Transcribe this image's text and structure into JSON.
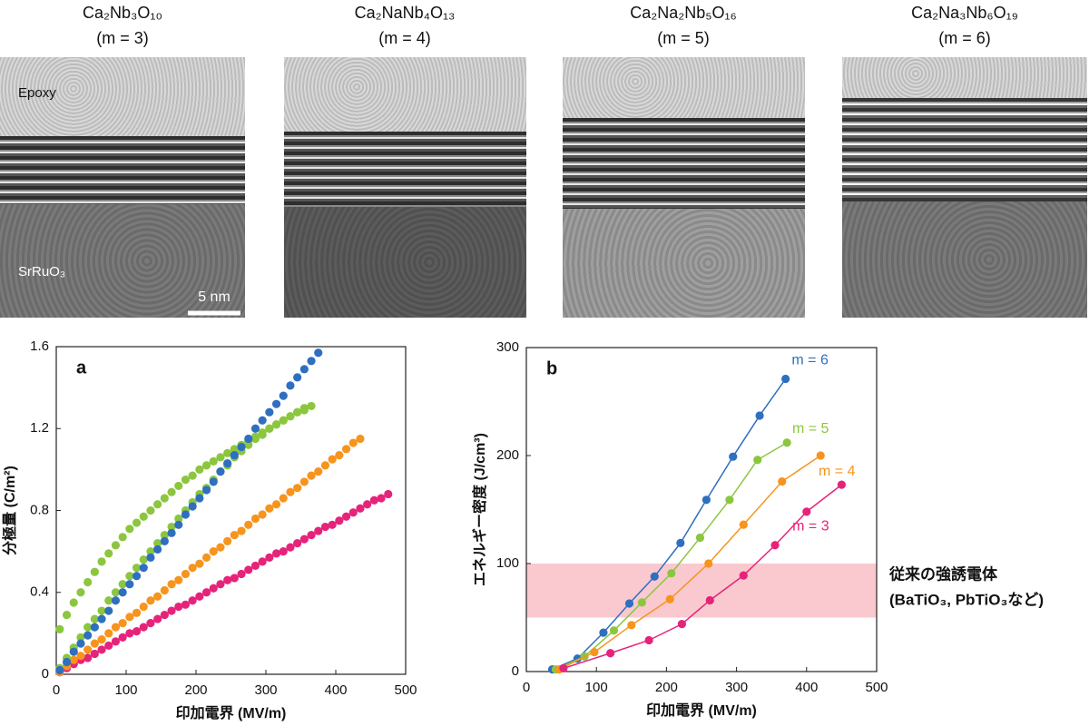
{
  "panels": [
    {
      "formula": "Ca₂Nb₃O₁₀",
      "m": "(m = 3)"
    },
    {
      "formula": "Ca₂NaNb₄O₁₃",
      "m": "(m = 4)"
    },
    {
      "formula": "Ca₂Na₂Nb₅O₁₆",
      "m": "(m = 5)"
    },
    {
      "formula": "Ca₂Na₃Nb₆O₁₉",
      "m": "(m = 6)"
    }
  ],
  "image_labels": {
    "epoxy": "Epoxy",
    "substrate": "SrRuO₃",
    "scale_bar": "5 nm"
  },
  "chart_data": [
    {
      "type": "scatter",
      "panel_label": "a",
      "x_label": "印加電界 (MV/m)",
      "y_label": "分極量 (C/m²)",
      "xlim": [
        0,
        500
      ],
      "xticks": [
        0,
        100,
        200,
        300,
        400,
        500
      ],
      "ylim": [
        0,
        1.6
      ],
      "yticks": [
        0,
        0.4,
        0.8,
        1.2,
        1.6
      ],
      "series": [
        {
          "color": "#e6237a",
          "x": [
            5,
            15,
            25,
            35,
            45,
            55,
            65,
            75,
            85,
            95,
            105,
            115,
            125,
            135,
            145,
            155,
            165,
            175,
            185,
            195,
            205,
            215,
            225,
            235,
            245,
            255,
            265,
            275,
            285,
            295,
            305,
            315,
            325,
            335,
            345,
            355,
            365,
            375,
            385,
            395,
            405,
            415,
            425,
            435,
            445,
            455,
            465,
            475
          ],
          "values": [
            0.01,
            0.03,
            0.05,
            0.07,
            0.08,
            0.1,
            0.12,
            0.14,
            0.16,
            0.18,
            0.2,
            0.21,
            0.23,
            0.25,
            0.27,
            0.29,
            0.31,
            0.33,
            0.34,
            0.36,
            0.38,
            0.4,
            0.42,
            0.44,
            0.46,
            0.47,
            0.49,
            0.51,
            0.53,
            0.55,
            0.57,
            0.59,
            0.6,
            0.62,
            0.64,
            0.66,
            0.68,
            0.7,
            0.72,
            0.73,
            0.75,
            0.77,
            0.79,
            0.81,
            0.83,
            0.85,
            0.86,
            0.88
          ]
        },
        {
          "color": "#f7941d",
          "x": [
            5,
            15,
            25,
            35,
            45,
            55,
            65,
            75,
            85,
            95,
            105,
            115,
            125,
            135,
            145,
            155,
            165,
            175,
            185,
            195,
            205,
            215,
            225,
            235,
            245,
            255,
            265,
            275,
            285,
            295,
            305,
            315,
            325,
            335,
            345,
            355,
            365,
            375,
            385,
            395,
            405,
            415,
            425,
            435
          ],
          "values": [
            0.01,
            0.04,
            0.07,
            0.09,
            0.12,
            0.15,
            0.17,
            0.2,
            0.23,
            0.25,
            0.28,
            0.3,
            0.33,
            0.36,
            0.38,
            0.41,
            0.44,
            0.46,
            0.49,
            0.52,
            0.54,
            0.57,
            0.6,
            0.62,
            0.65,
            0.68,
            0.7,
            0.73,
            0.76,
            0.78,
            0.81,
            0.83,
            0.86,
            0.89,
            0.91,
            0.94,
            0.97,
            0.99,
            1.02,
            1.05,
            1.07,
            1.1,
            1.13,
            1.15
          ]
        },
        {
          "color": "#8cc63f",
          "x": [
            5,
            15,
            25,
            35,
            45,
            55,
            65,
            75,
            85,
            95,
            105,
            115,
            125,
            135,
            145,
            155,
            165,
            175,
            185,
            195,
            205,
            215,
            225,
            235,
            245,
            255,
            265,
            275,
            285,
            295,
            305,
            315,
            325,
            335,
            345,
            355,
            365
          ],
          "values": [
            0.22,
            0.29,
            0.35,
            0.4,
            0.45,
            0.5,
            0.55,
            0.59,
            0.63,
            0.67,
            0.71,
            0.74,
            0.77,
            0.8,
            0.83,
            0.86,
            0.89,
            0.92,
            0.95,
            0.97,
            1.0,
            1.02,
            1.04,
            1.06,
            1.08,
            1.1,
            1.12,
            1.14,
            1.16,
            1.18,
            1.2,
            1.22,
            1.24,
            1.26,
            1.28,
            1.3,
            1.31
          ]
        },
        {
          "color": "#8cc63f",
          "x": [
            5,
            15,
            25,
            35,
            45,
            55,
            65,
            75,
            85,
            95,
            105,
            115,
            125,
            135,
            145,
            155,
            165,
            175,
            185,
            195,
            205,
            215,
            225,
            235,
            245,
            255,
            265,
            275,
            285,
            295,
            305,
            315,
            325,
            335,
            345,
            355
          ],
          "values": [
            0.03,
            0.08,
            0.13,
            0.18,
            0.23,
            0.27,
            0.31,
            0.36,
            0.4,
            0.44,
            0.48,
            0.52,
            0.56,
            0.6,
            0.64,
            0.68,
            0.72,
            0.76,
            0.8,
            0.84,
            0.88,
            0.91,
            0.95,
            0.99,
            1.02,
            1.06,
            1.09,
            1.12,
            1.15,
            1.17,
            1.2,
            1.22,
            1.24,
            1.26,
            1.28,
            1.29
          ]
        },
        {
          "color": "#2f6fc0",
          "x": [
            5,
            15,
            25,
            35,
            45,
            55,
            65,
            75,
            85,
            95,
            105,
            115,
            125,
            135,
            145,
            155,
            165,
            175,
            185,
            195,
            205,
            215,
            225,
            235,
            245,
            255,
            265,
            275,
            285,
            295,
            305,
            315,
            325,
            335,
            345,
            355,
            365,
            375
          ],
          "values": [
            0.02,
            0.06,
            0.11,
            0.15,
            0.19,
            0.23,
            0.27,
            0.31,
            0.36,
            0.4,
            0.44,
            0.48,
            0.52,
            0.57,
            0.61,
            0.65,
            0.69,
            0.73,
            0.78,
            0.82,
            0.86,
            0.9,
            0.94,
            0.99,
            1.03,
            1.07,
            1.11,
            1.15,
            1.2,
            1.24,
            1.28,
            1.32,
            1.36,
            1.41,
            1.45,
            1.49,
            1.53,
            1.57
          ]
        }
      ]
    },
    {
      "type": "line",
      "panel_label": "b",
      "x_label": "印加電界 (MV/m)",
      "y_label": "エネルギー密度 (J/cm³)",
      "xlim": [
        0,
        500
      ],
      "xticks": [
        0,
        100,
        200,
        300,
        400,
        500
      ],
      "ylim": [
        0,
        300
      ],
      "yticks": [
        0,
        100,
        200,
        300
      ],
      "band": [
        50,
        100
      ],
      "band_color": "#f9c9cf",
      "band_label": [
        "従来の強誘電体",
        "(BaTiO₃, PbTiO₃など)"
      ],
      "series": [
        {
          "name": "m = 6",
          "color": "#2f6fc0",
          "x": [
            37,
            73,
            110,
            147,
            183,
            220,
            257,
            295,
            333,
            370
          ],
          "values": [
            2,
            12,
            36,
            63,
            88,
            119,
            159,
            199,
            237,
            271
          ]
        },
        {
          "name": "m = 5",
          "color": "#8cc63f",
          "x": [
            42,
            83,
            125,
            165,
            207,
            248,
            290,
            330,
            372
          ],
          "values": [
            2,
            14,
            38,
            64,
            91,
            124,
            159,
            196,
            212
          ]
        },
        {
          "name": "m = 4",
          "color": "#f7941d",
          "x": [
            47,
            97,
            150,
            205,
            260,
            310,
            365,
            420
          ],
          "values": [
            2,
            18,
            43,
            67,
            100,
            136,
            176,
            200
          ]
        },
        {
          "name": "m = 3",
          "color": "#e6237a",
          "x": [
            53,
            120,
            175,
            222,
            262,
            310,
            355,
            400,
            450
          ],
          "values": [
            3,
            17,
            29,
            44,
            66,
            89,
            117,
            148,
            173
          ]
        }
      ]
    }
  ]
}
